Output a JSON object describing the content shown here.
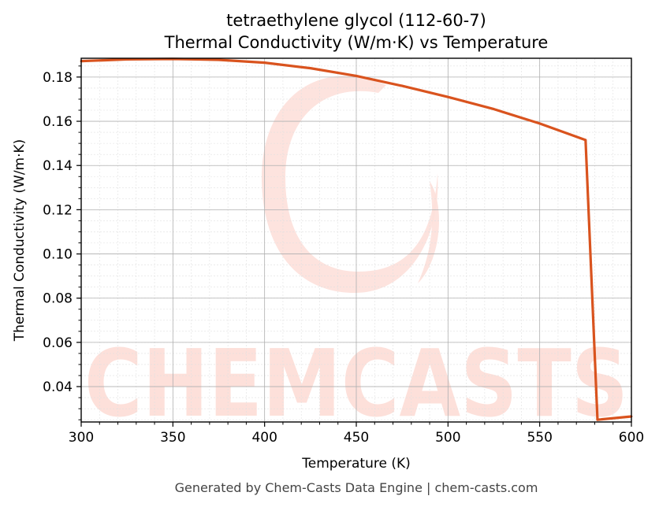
{
  "colors": {
    "line": "#d9531e",
    "watermark": "#fde0da",
    "grid_major": "#b0b0b0",
    "grid_minor": "#e0e0e0",
    "footer": "#444444"
  },
  "footer": "Generated by Chem-Casts Data Engine | chem-casts.com",
  "watermark": {
    "text": "CHEMCASTS",
    "logo": "chem-casts-swirl-logo"
  },
  "chart_data": {
    "type": "line",
    "title": "tetraethylene glycol (112-60-7)",
    "subtitle": "Thermal Conductivity (W/m·K) vs Temperature",
    "xlabel": "Temperature (K)",
    "ylabel": "Thermal Conductivity (W/m·K)",
    "xlim": [
      300,
      600
    ],
    "ylim": [
      0.024,
      0.1885
    ],
    "x_ticks": [
      300,
      350,
      400,
      450,
      500,
      550,
      600
    ],
    "y_ticks": [
      0.04,
      0.06,
      0.08,
      0.1,
      0.12,
      0.14,
      0.16,
      0.18
    ],
    "grid": true,
    "legend": "none",
    "series": [
      {
        "x": [
          300,
          325,
          350,
          375,
          400,
          425,
          450,
          475,
          500,
          525,
          550,
          575,
          581.5,
          600
        ],
        "y": [
          0.1872,
          0.188,
          0.1882,
          0.1878,
          0.1865,
          0.184,
          0.1805,
          0.176,
          0.171,
          0.1655,
          0.159,
          0.1515,
          0.025,
          0.0265
        ]
      }
    ]
  }
}
